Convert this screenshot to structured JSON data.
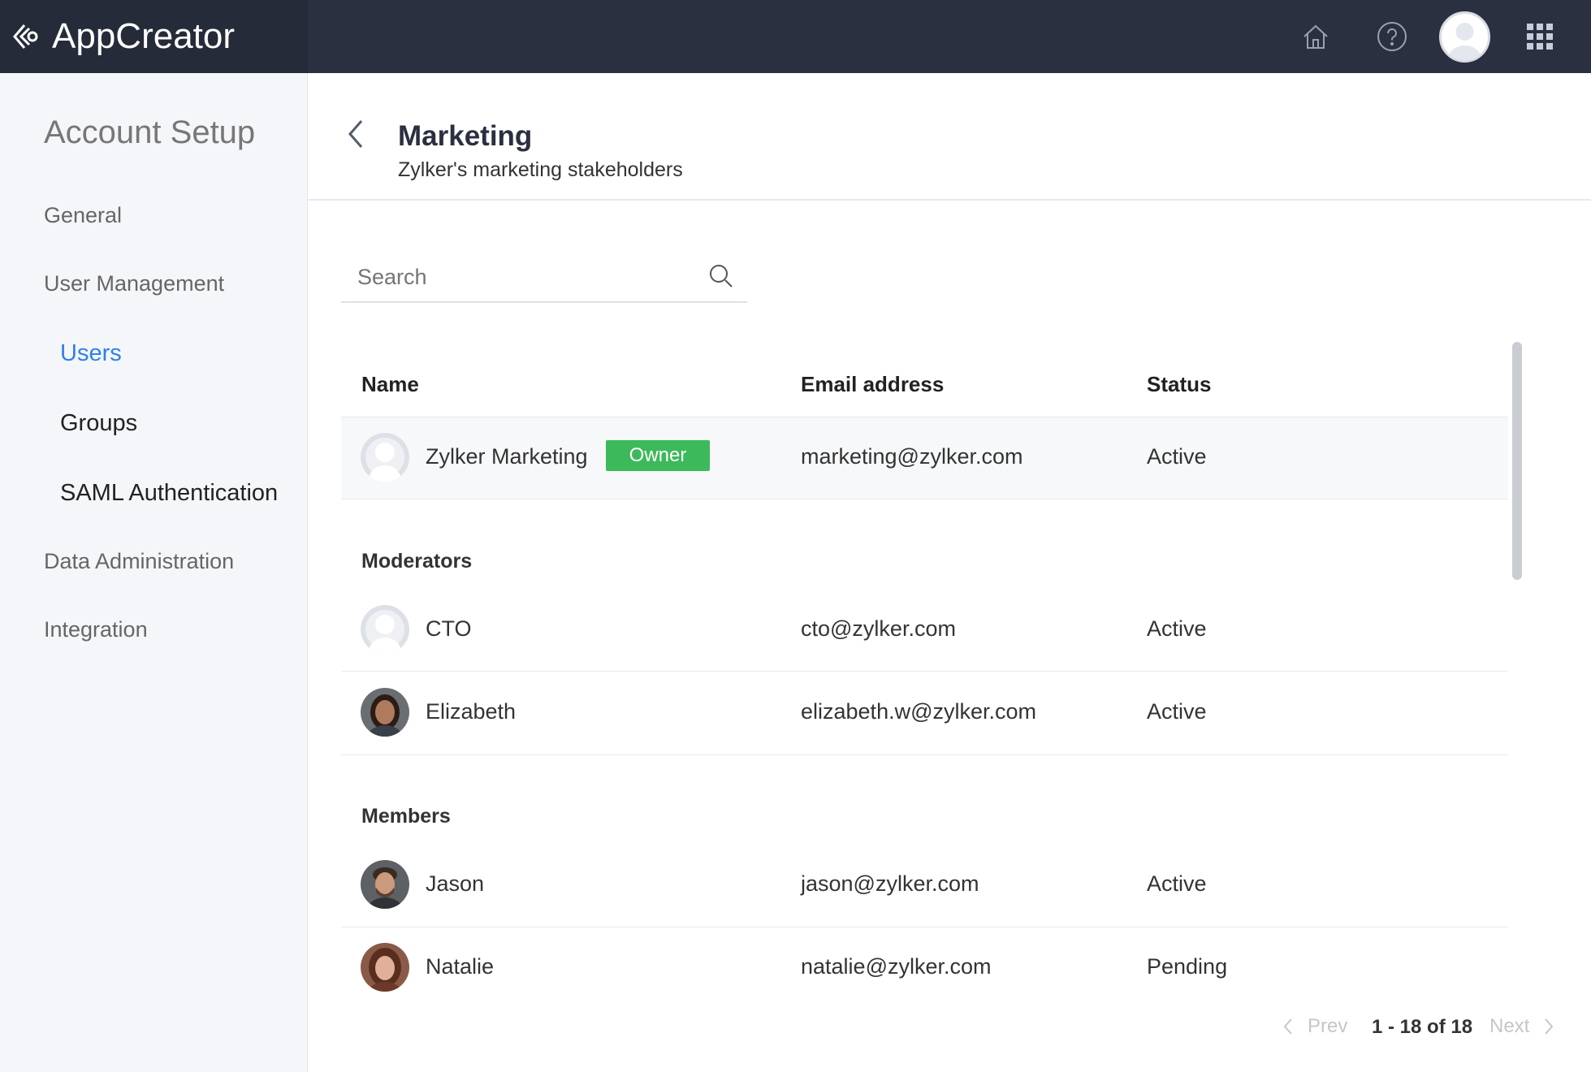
{
  "app": {
    "title": "AppCreator"
  },
  "header_icons": [
    "home-icon",
    "help-icon",
    "user-avatar",
    "apps-grid-icon"
  ],
  "sidebar": {
    "title": "Account Setup",
    "items": [
      {
        "label": "General"
      },
      {
        "label": "User Management"
      },
      {
        "label": "Users",
        "active": true
      },
      {
        "label": "Groups"
      },
      {
        "label": "SAML Authentication"
      },
      {
        "label": "Data Administration"
      },
      {
        "label": "Integration"
      }
    ]
  },
  "page": {
    "title": "Marketing",
    "subtitle": "Zylker's marketing stakeholders"
  },
  "search": {
    "placeholder": "Search"
  },
  "table": {
    "columns": [
      "Name",
      "Email address",
      "Status"
    ],
    "owner": {
      "name": "Zylker Marketing",
      "badge": "Owner",
      "email": "marketing@zylker.com",
      "status": "Active"
    },
    "moderators_label": "Moderators",
    "moderators": [
      {
        "name": "CTO",
        "email": "cto@zylker.com",
        "status": "Active"
      },
      {
        "name": "Elizabeth",
        "email": "elizabeth.w@zylker.com",
        "status": "Active"
      }
    ],
    "members_label": "Members",
    "members": [
      {
        "name": "Jason",
        "email": "jason@zylker.com",
        "status": "Active"
      },
      {
        "name": "Natalie",
        "email": "natalie@zylker.com",
        "status": "Pending"
      }
    ]
  },
  "pagination": {
    "prev": "Prev",
    "range": "1 - 18 of 18",
    "next": "Next"
  },
  "colors": {
    "accent": "#2f80ed",
    "owner_badge": "#3cb95b",
    "topbar": "#2a3040"
  }
}
